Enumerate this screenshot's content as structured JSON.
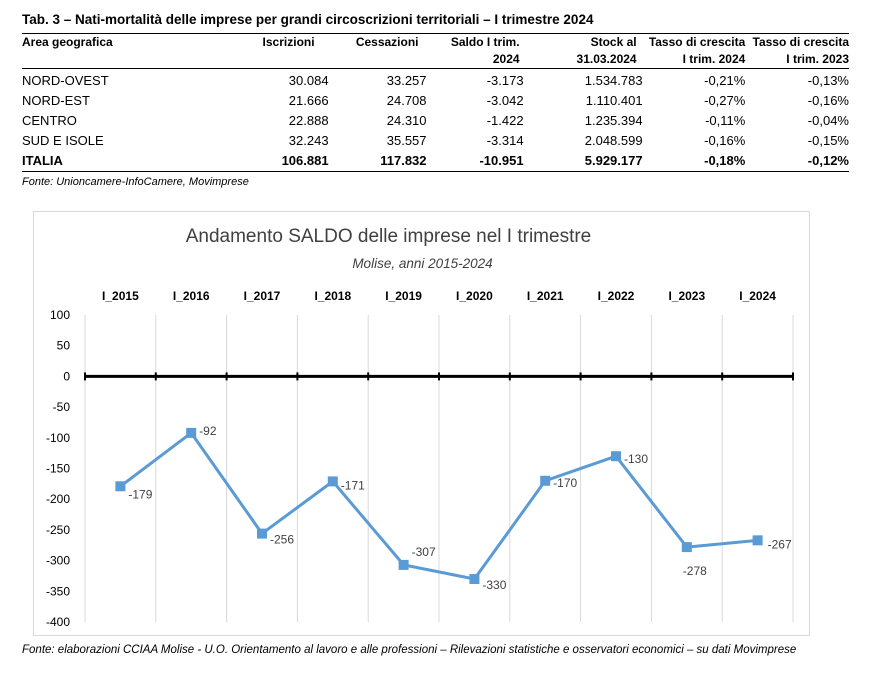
{
  "table": {
    "title": "Tab. 3 – Nati-mortalità delle imprese per grandi circoscrizioni territoriali – I trimestre 2024",
    "headers": [
      [
        "Area geografica",
        ""
      ],
      [
        "Iscrizioni",
        ""
      ],
      [
        "Cessazioni",
        ""
      ],
      [
        "Saldo I trim.",
        "2024"
      ],
      [
        "Stock al",
        "31.03.2024"
      ],
      [
        "Tasso di crescita",
        "I trim. 2024"
      ],
      [
        "Tasso di crescita",
        "I trim. 2023"
      ]
    ],
    "rows": [
      [
        "NORD-OVEST",
        "30.084",
        "33.257",
        "-3.173",
        "1.534.783",
        "-0,21%",
        "-0,13%"
      ],
      [
        "NORD-EST",
        "21.666",
        "24.708",
        "-3.042",
        "1.110.401",
        "-0,27%",
        "-0,16%"
      ],
      [
        "CENTRO",
        "22.888",
        "24.310",
        "-1.422",
        "1.235.394",
        "-0,11%",
        "-0,04%"
      ],
      [
        "SUD E ISOLE",
        "32.243",
        "35.557",
        "-3.314",
        "2.048.599",
        "-0,16%",
        "-0,15%"
      ],
      [
        "ITALIA",
        "106.881",
        "117.832",
        "-10.951",
        "5.929.177",
        "-0,18%",
        "-0,12%"
      ]
    ],
    "source": "Fonte: Unioncamere-InfoCamere, Movimprese"
  },
  "chart_data": {
    "type": "line",
    "title": "Andamento SALDO delle imprese nel I trimestre",
    "subtitle": "Molise, anni 2015-2024",
    "categories": [
      "I_2015",
      "I_2016",
      "I_2017",
      "I_2018",
      "I_2019",
      "I_2020",
      "I_2021",
      "I_2022",
      "I_2023",
      "I_2024"
    ],
    "series": [
      {
        "values": [
          -179,
          -92,
          -256,
          -171,
          -307,
          -330,
          -170,
          -130,
          -278,
          -267
        ]
      }
    ],
    "data_labels": [
      "-179",
      "-92",
      "-256",
      "-171",
      "-307",
      "-330",
      "-170",
      "-130",
      "-278",
      "-267"
    ],
    "ylim": [
      -400,
      100
    ],
    "yticks": [
      100,
      50,
      0,
      -50,
      -100,
      -150,
      -200,
      -250,
      -300,
      -350,
      -400
    ],
    "category_axis_position": "top",
    "vertical_gridlines": true,
    "zero_line": "bold",
    "line_color": "#5b9bd5",
    "source": "Fonte: elaborazioni CCIAA Molise - U.O. Orientamento al lavoro e alle professioni – Rilevazioni statistiche e osservatori economici – su dati Movimprese"
  }
}
